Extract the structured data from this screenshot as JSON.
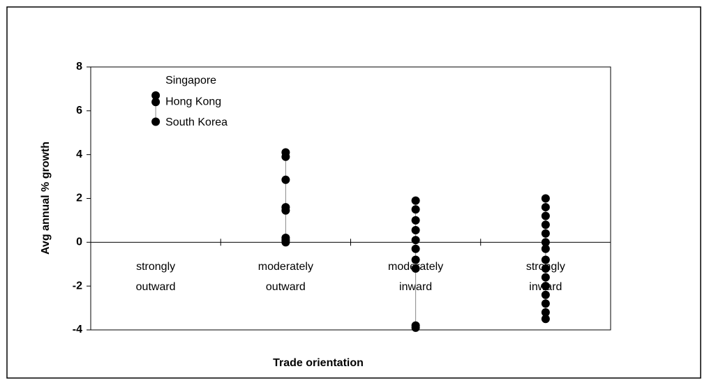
{
  "chart_data": {
    "type": "strip",
    "x_label": "Trade orientation",
    "y_label": "Avg annual % growth",
    "categories": [
      "strongly outward",
      "moderately outward",
      "moderately inward",
      "strongly inward"
    ],
    "values": [
      [
        6.7,
        6.4,
        5.5
      ],
      [
        4.1,
        3.9,
        2.85,
        1.6,
        1.45,
        0.2,
        0.1,
        0.0
      ],
      [
        1.9,
        1.5,
        1.0,
        0.55,
        0.1,
        -0.3,
        -0.8,
        -1.2,
        -3.8,
        -3.9
      ],
      [
        2.0,
        1.6,
        1.2,
        0.8,
        0.4,
        0.0,
        -0.3,
        -0.8,
        -1.2,
        -1.6,
        -2.0,
        -2.4,
        -2.8,
        -3.2,
        -3.5
      ]
    ],
    "point_labels": [
      [
        "Singapore",
        "Hong Kong",
        "South Korea"
      ]
    ],
    "color": "#000000",
    "ylim": [
      -4,
      8
    ],
    "yticks": [
      -4,
      -2,
      0,
      2,
      4,
      6,
      8
    ]
  }
}
